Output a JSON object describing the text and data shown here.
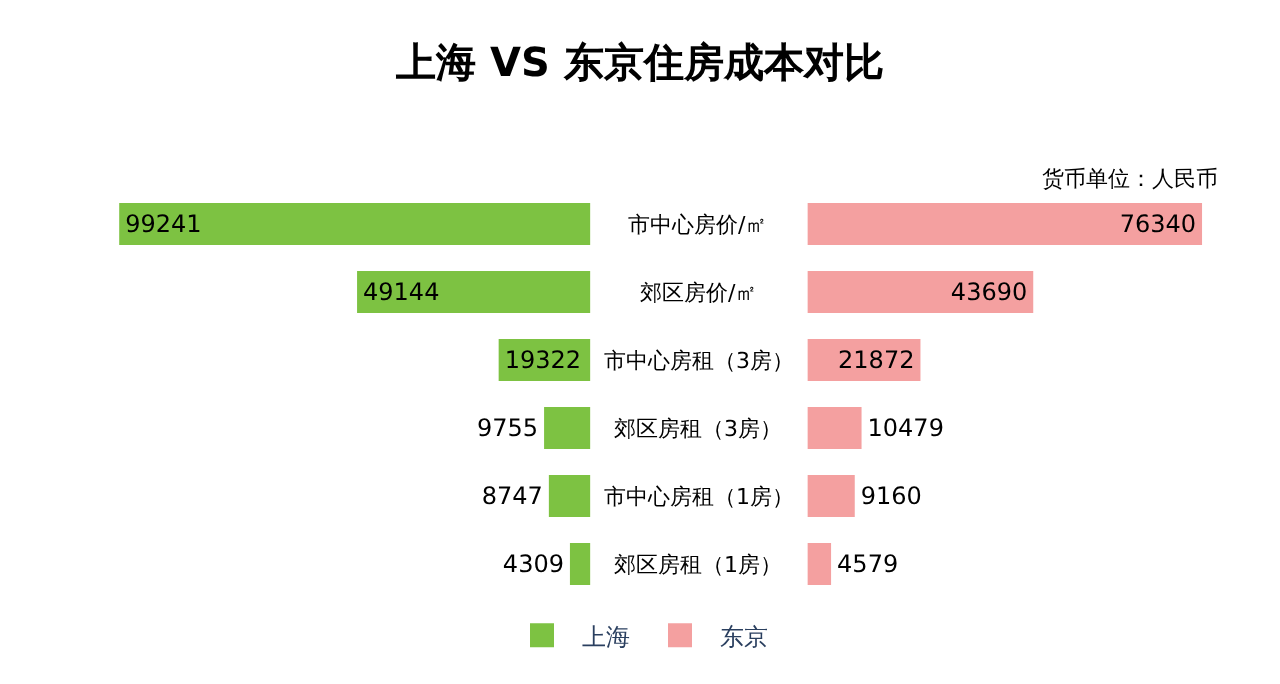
{
  "chart_data": [
    {
      "type": "bar",
      "orientation": "horizontal",
      "title": "上海 VS 东京住房成本对比",
      "categories": [
        "市中心房价/㎡",
        "郊区房价/㎡",
        "市中心房租（3房）",
        "郊区房租（3房）",
        "市中心房租（1房）",
        "郊区房租（1房）"
      ],
      "series": [
        {
          "name": "上海",
          "color": "#7dc242",
          "values": [
            99241,
            49144,
            19322,
            9755,
            8747,
            4309
          ]
        }
      ],
      "data_labels": true,
      "tick_labels": "y",
      "legend": "bottom"
    },
    {
      "type": "bar",
      "orientation": "horizontal",
      "annotations": [
        "货币单位：人民币"
      ],
      "series": [
        {
          "name": "东京",
          "color": "#f4a0a0",
          "values": [
            76340,
            43690,
            21872,
            10479,
            9160,
            4579
          ]
        }
      ],
      "data_labels": true,
      "tick_labels": false,
      "legend": "bottom"
    }
  ]
}
